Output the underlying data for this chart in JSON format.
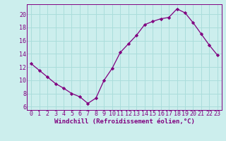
{
  "x": [
    0,
    1,
    2,
    3,
    4,
    5,
    6,
    7,
    8,
    9,
    10,
    11,
    12,
    13,
    14,
    15,
    16,
    17,
    18,
    19,
    20,
    21,
    22,
    23
  ],
  "y": [
    12.5,
    11.5,
    10.5,
    9.5,
    8.8,
    8.0,
    7.5,
    6.5,
    7.3,
    10.0,
    11.8,
    14.2,
    15.5,
    16.8,
    18.4,
    18.9,
    19.3,
    19.5,
    20.8,
    20.2,
    18.7,
    17.0,
    15.3,
    13.8
  ],
  "line_color": "#800080",
  "marker": "D",
  "marker_size": 2.2,
  "bg_color": "#cceeed",
  "grid_color": "#aadddb",
  "xlabel": "Windchill (Refroidissement éolien,°C)",
  "xlim": [
    -0.5,
    23.5
  ],
  "ylim": [
    5.5,
    21.5
  ],
  "yticks": [
    6,
    8,
    10,
    12,
    14,
    16,
    18,
    20
  ],
  "xticks": [
    0,
    1,
    2,
    3,
    4,
    5,
    6,
    7,
    8,
    9,
    10,
    11,
    12,
    13,
    14,
    15,
    16,
    17,
    18,
    19,
    20,
    21,
    22,
    23
  ],
  "xlabel_fontsize": 6.5,
  "tick_fontsize": 6.0,
  "label_color": "#800080",
  "linewidth": 0.9
}
